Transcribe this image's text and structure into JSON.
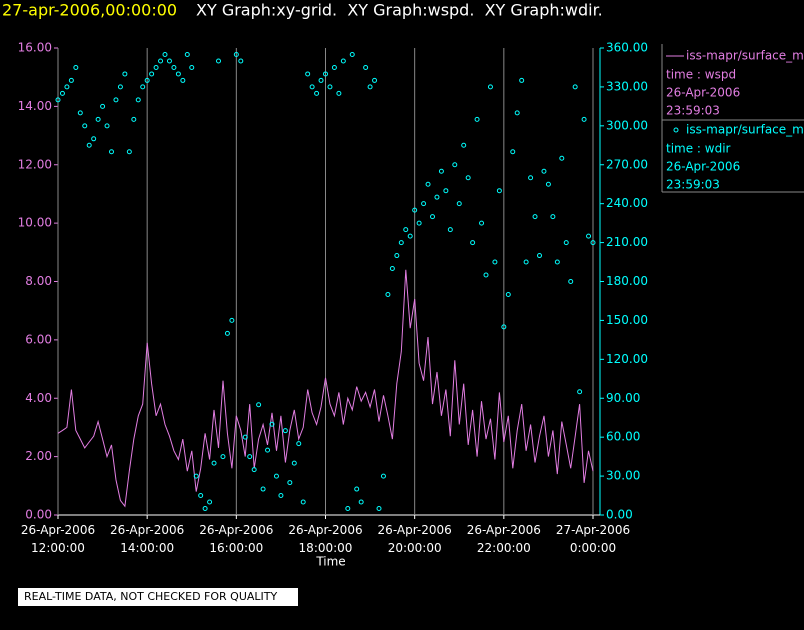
{
  "chart_data": {
    "type": "line",
    "title": "27-apr-2006,00:00:00",
    "graphs": "XY Graph:xy-grid.  XY Graph:wspd.  XY Graph:wdir.",
    "x_label": "Time",
    "note": "REAL-TIME DATA, NOT CHECKED FOR QUALITY",
    "xlim": [
      12,
      24
    ],
    "xticks": [
      {
        "value": 12,
        "label": "26-Apr-2006\n12:00:00"
      },
      {
        "value": 14,
        "label": "26-Apr-2006\n14:00:00"
      },
      {
        "value": 16,
        "label": "26-Apr-2006\n16:00:00"
      },
      {
        "value": 18,
        "label": "26-Apr-2006\n18:00:00"
      },
      {
        "value": 20,
        "label": "26-Apr-2006\n20:00:00"
      },
      {
        "value": 22,
        "label": "26-Apr-2006\n22:00:00"
      },
      {
        "value": 24,
        "label": "27-Apr-2006\n0:00:00"
      }
    ],
    "xgrid": true,
    "ylim": [
      0,
      16
    ],
    "yticks": [
      {
        "value": 0,
        "label": "0.00"
      },
      {
        "value": 2,
        "label": "2.00"
      },
      {
        "value": 4,
        "label": "4.00"
      },
      {
        "value": 6,
        "label": "6.00"
      },
      {
        "value": 8,
        "label": "8.00"
      },
      {
        "value": 10,
        "label": "10.00"
      },
      {
        "value": 12,
        "label": "12.00"
      },
      {
        "value": 14,
        "label": "14.00"
      },
      {
        "value": 16,
        "label": "16.00"
      }
    ],
    "y2lim": [
      0,
      360
    ],
    "y2ticks": [
      {
        "value": 0,
        "label": "0.00"
      },
      {
        "value": 30,
        "label": "30.00"
      },
      {
        "value": 60,
        "label": "60.00"
      },
      {
        "value": 90,
        "label": "90.00"
      },
      {
        "value": 120,
        "label": "120.00"
      },
      {
        "value": 150,
        "label": "150.00"
      },
      {
        "value": 180,
        "label": "180.00"
      },
      {
        "value": 210,
        "label": "210.00"
      },
      {
        "value": 240,
        "label": "240.00"
      },
      {
        "value": 270,
        "label": "270.00"
      },
      {
        "value": 300,
        "label": "300.00"
      },
      {
        "value": 330,
        "label": "330.00"
      },
      {
        "value": 360,
        "label": "360.00"
      }
    ],
    "series": [
      {
        "name": "iss-mapr/surface_m",
        "legend_lines": [
          "time : wspd",
          "26-Apr-2006",
          "23:59:03"
        ],
        "style": "line",
        "color": "#e27ee2",
        "x": [
          12.0,
          12.1,
          12.2,
          12.3,
          12.4,
          12.5,
          12.6,
          12.7,
          12.8,
          12.9,
          13.0,
          13.1,
          13.2,
          13.3,
          13.4,
          13.5,
          13.6,
          13.7,
          13.8,
          13.9,
          14.0,
          14.1,
          14.2,
          14.3,
          14.4,
          14.5,
          14.6,
          14.7,
          14.8,
          14.9,
          15.0,
          15.1,
          15.2,
          15.3,
          15.4,
          15.5,
          15.6,
          15.7,
          15.8,
          15.9,
          16.0,
          16.1,
          16.2,
          16.3,
          16.4,
          16.5,
          16.6,
          16.7,
          16.8,
          16.9,
          17.0,
          17.1,
          17.2,
          17.3,
          17.4,
          17.5,
          17.6,
          17.7,
          17.8,
          17.9,
          18.0,
          18.1,
          18.2,
          18.3,
          18.4,
          18.5,
          18.6,
          18.7,
          18.8,
          18.9,
          19.0,
          19.1,
          19.2,
          19.3,
          19.4,
          19.5,
          19.6,
          19.7,
          19.8,
          19.9,
          20.0,
          20.1,
          20.2,
          20.3,
          20.4,
          20.5,
          20.6,
          20.7,
          20.8,
          20.9,
          21.0,
          21.1,
          21.2,
          21.3,
          21.4,
          21.5,
          21.6,
          21.7,
          21.8,
          21.9,
          22.0,
          22.1,
          22.2,
          22.3,
          22.4,
          22.5,
          22.6,
          22.7,
          22.8,
          22.9,
          23.0,
          23.1,
          23.2,
          23.3,
          23.4,
          23.5,
          23.6,
          23.7,
          23.8,
          23.9,
          24.0
        ],
        "values": [
          2.8,
          2.9,
          3.0,
          4.3,
          2.9,
          2.6,
          2.3,
          2.5,
          2.7,
          3.2,
          2.6,
          2.0,
          2.4,
          1.2,
          0.5,
          0.3,
          1.5,
          2.6,
          3.4,
          3.8,
          5.9,
          4.5,
          3.4,
          3.8,
          3.1,
          2.7,
          2.2,
          1.9,
          2.6,
          1.5,
          2.2,
          0.8,
          1.6,
          2.8,
          1.9,
          3.6,
          2.3,
          4.6,
          2.8,
          1.6,
          3.4,
          2.9,
          2.0,
          3.8,
          1.6,
          2.6,
          3.1,
          2.4,
          3.5,
          2.2,
          3.4,
          1.8,
          2.9,
          3.6,
          2.6,
          3.0,
          4.3,
          3.5,
          3.1,
          3.7,
          4.7,
          3.8,
          3.4,
          4.2,
          3.1,
          4.0,
          3.6,
          4.4,
          3.9,
          4.2,
          3.7,
          4.3,
          3.2,
          4.1,
          3.4,
          2.6,
          4.5,
          5.6,
          8.4,
          6.4,
          7.4,
          5.2,
          4.6,
          6.1,
          3.8,
          4.9,
          3.4,
          4.3,
          2.7,
          5.3,
          3.1,
          4.5,
          2.4,
          3.6,
          2.0,
          3.9,
          2.6,
          3.3,
          1.9,
          4.2,
          2.5,
          3.4,
          1.6,
          2.9,
          3.8,
          2.2,
          3.1,
          1.8,
          2.7,
          3.4,
          2.0,
          2.9,
          1.4,
          3.2,
          2.4,
          1.6,
          2.7,
          3.8,
          1.1,
          2.2,
          1.5
        ]
      },
      {
        "name": "iss-mapr/surface_m",
        "legend_lines": [
          "time : wdir",
          "26-Apr-2006",
          "23:59:03"
        ],
        "style": "markers",
        "color": "#00ffff",
        "axis": "y2",
        "x": [
          12.0,
          12.1,
          12.2,
          12.3,
          12.4,
          12.5,
          12.6,
          12.7,
          12.8,
          12.9,
          13.0,
          13.1,
          13.2,
          13.3,
          13.4,
          13.5,
          13.6,
          13.7,
          13.8,
          13.9,
          14.0,
          14.1,
          14.2,
          14.3,
          14.4,
          14.5,
          14.6,
          14.7,
          14.8,
          14.9,
          15.0,
          15.1,
          15.2,
          15.3,
          15.4,
          15.5,
          15.6,
          15.7,
          15.8,
          15.9,
          16.0,
          16.1,
          16.2,
          16.3,
          16.4,
          16.5,
          16.6,
          16.7,
          16.8,
          16.9,
          17.0,
          17.1,
          17.2,
          17.3,
          17.4,
          17.5,
          17.6,
          17.7,
          17.8,
          17.9,
          18.0,
          18.1,
          18.2,
          18.3,
          18.4,
          18.5,
          18.6,
          18.7,
          18.8,
          18.9,
          19.0,
          19.1,
          19.2,
          19.3,
          19.4,
          19.5,
          19.6,
          19.7,
          19.8,
          19.9,
          20.0,
          20.1,
          20.2,
          20.3,
          20.4,
          20.5,
          20.6,
          20.7,
          20.8,
          20.9,
          21.0,
          21.1,
          21.2,
          21.3,
          21.4,
          21.5,
          21.6,
          21.7,
          21.8,
          21.9,
          22.0,
          22.1,
          22.2,
          22.3,
          22.4,
          22.5,
          22.6,
          22.7,
          22.8,
          22.9,
          23.0,
          23.1,
          23.2,
          23.3,
          23.4,
          23.5,
          23.6,
          23.7,
          23.8,
          23.9,
          24.0
        ],
        "values": [
          320,
          325,
          330,
          335,
          345,
          310,
          300,
          285,
          290,
          305,
          315,
          300,
          280,
          320,
          330,
          340,
          280,
          305,
          320,
          330,
          335,
          340,
          345,
          350,
          355,
          350,
          345,
          340,
          335,
          355,
          345,
          30,
          15,
          5,
          10,
          40,
          350,
          45,
          140,
          150,
          355,
          350,
          60,
          45,
          35,
          85,
          20,
          50,
          70,
          30,
          15,
          65,
          25,
          40,
          55,
          10,
          340,
          330,
          325,
          335,
          340,
          330,
          345,
          325,
          350,
          5,
          355,
          20,
          10,
          345,
          330,
          335,
          5,
          30,
          170,
          190,
          200,
          210,
          220,
          215,
          235,
          225,
          240,
          255,
          230,
          245,
          265,
          250,
          220,
          270,
          240,
          285,
          260,
          210,
          305,
          225,
          185,
          330,
          195,
          250,
          145,
          170,
          280,
          310,
          335,
          195,
          260,
          230,
          200,
          265,
          255,
          230,
          195,
          275,
          210,
          180,
          330,
          95,
          305,
          215,
          210
        ]
      }
    ]
  }
}
